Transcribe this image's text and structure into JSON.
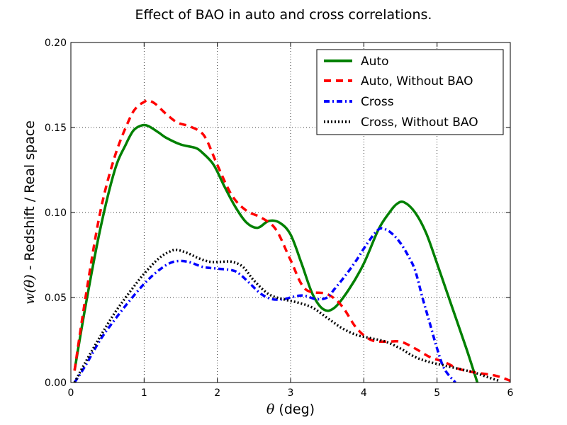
{
  "chart_data": {
    "type": "line",
    "title": "Effect of BAO in auto and cross correlations.",
    "xlabel_symbol": "θ",
    "xlabel_unit": " (deg)",
    "ylabel_symbol": "w(θ)",
    "ylabel_text": " - Redshift / Real space",
    "xlim": [
      0,
      6
    ],
    "ylim": [
      0,
      0.2
    ],
    "grid": true,
    "legend_position": "top-right",
    "xticks": [
      0,
      1,
      2,
      3,
      4,
      5,
      6
    ],
    "xtick_labels": [
      "0",
      "1",
      "2",
      "3",
      "4",
      "5",
      "6"
    ],
    "yticks": [
      0,
      0.05,
      0.1,
      0.15,
      0.2
    ],
    "ytick_labels": [
      "0.00",
      "0.05",
      "0.10",
      "0.15",
      "0.20"
    ],
    "series": [
      {
        "name": "Auto",
        "color": "#008000",
        "style": "solid",
        "x": [
          0.05,
          0.2,
          0.4,
          0.6,
          0.75,
          0.85,
          0.95,
          1.05,
          1.2,
          1.3,
          1.5,
          1.7,
          1.8,
          1.95,
          2.1,
          2.25,
          2.4,
          2.55,
          2.7,
          2.85,
          3.0,
          3.15,
          3.3,
          3.45,
          3.6,
          3.8,
          4.0,
          4.2,
          4.35,
          4.45,
          4.55,
          4.7,
          4.85,
          5.0,
          5.2,
          5.4,
          5.55
        ],
        "values": [
          0.007,
          0.045,
          0.09,
          0.125,
          0.14,
          0.148,
          0.151,
          0.151,
          0.147,
          0.144,
          0.14,
          0.138,
          0.135,
          0.128,
          0.115,
          0.103,
          0.094,
          0.091,
          0.095,
          0.094,
          0.087,
          0.07,
          0.052,
          0.043,
          0.044,
          0.055,
          0.07,
          0.09,
          0.1,
          0.105,
          0.106,
          0.1,
          0.088,
          0.07,
          0.045,
          0.02,
          0.0
        ]
      },
      {
        "name": "Auto, Without BAO",
        "color": "#ff0000",
        "style": "dashed",
        "x": [
          0.05,
          0.2,
          0.4,
          0.6,
          0.8,
          0.9,
          1.0,
          1.05,
          1.15,
          1.3,
          1.45,
          1.6,
          1.75,
          1.85,
          2.0,
          2.2,
          2.4,
          2.6,
          2.8,
          3.0,
          3.2,
          3.5,
          3.7,
          3.9,
          4.1,
          4.3,
          4.5,
          4.7,
          4.9,
          5.1,
          5.3,
          5.5,
          5.8,
          6.0
        ],
        "values": [
          0.007,
          0.05,
          0.1,
          0.133,
          0.155,
          0.162,
          0.165,
          0.166,
          0.164,
          0.158,
          0.153,
          0.151,
          0.148,
          0.143,
          0.128,
          0.11,
          0.101,
          0.097,
          0.09,
          0.072,
          0.055,
          0.052,
          0.045,
          0.032,
          0.025,
          0.024,
          0.024,
          0.02,
          0.015,
          0.012,
          0.008,
          0.006,
          0.004,
          0.001
        ]
      },
      {
        "name": "Cross",
        "color": "#0000ff",
        "style": "dashdot",
        "x": [
          0.05,
          0.2,
          0.4,
          0.6,
          0.8,
          1.0,
          1.2,
          1.4,
          1.6,
          1.8,
          2.0,
          2.2,
          2.3,
          2.45,
          2.6,
          2.75,
          2.9,
          3.0,
          3.1,
          3.2,
          3.35,
          3.5,
          3.6,
          3.75,
          3.9,
          4.05,
          4.2,
          4.3,
          4.4,
          4.5,
          4.6,
          4.7,
          4.8,
          4.9,
          5.0,
          5.1,
          5.25
        ],
        "values": [
          0.0,
          0.01,
          0.025,
          0.037,
          0.048,
          0.058,
          0.066,
          0.071,
          0.071,
          0.068,
          0.067,
          0.066,
          0.064,
          0.058,
          0.052,
          0.049,
          0.049,
          0.05,
          0.051,
          0.051,
          0.049,
          0.05,
          0.055,
          0.063,
          0.072,
          0.082,
          0.09,
          0.09,
          0.087,
          0.082,
          0.075,
          0.066,
          0.05,
          0.035,
          0.02,
          0.008,
          0.0
        ]
      },
      {
        "name": "Cross, Without BAO",
        "color": "#000000",
        "style": "dotted",
        "x": [
          0.05,
          0.2,
          0.4,
          0.6,
          0.8,
          1.0,
          1.2,
          1.35,
          1.45,
          1.6,
          1.75,
          1.9,
          2.05,
          2.2,
          2.35,
          2.5,
          2.7,
          2.9,
          3.1,
          3.3,
          3.5,
          3.7,
          3.9,
          4.1,
          4.3,
          4.5,
          4.7,
          4.9,
          5.1,
          5.3,
          5.5,
          5.7,
          5.85
        ],
        "values": [
          0.0,
          0.012,
          0.027,
          0.041,
          0.053,
          0.064,
          0.073,
          0.077,
          0.078,
          0.076,
          0.073,
          0.071,
          0.071,
          0.071,
          0.068,
          0.06,
          0.052,
          0.049,
          0.047,
          0.044,
          0.038,
          0.032,
          0.028,
          0.026,
          0.024,
          0.02,
          0.015,
          0.012,
          0.01,
          0.008,
          0.006,
          0.003,
          0.001
        ]
      }
    ]
  }
}
